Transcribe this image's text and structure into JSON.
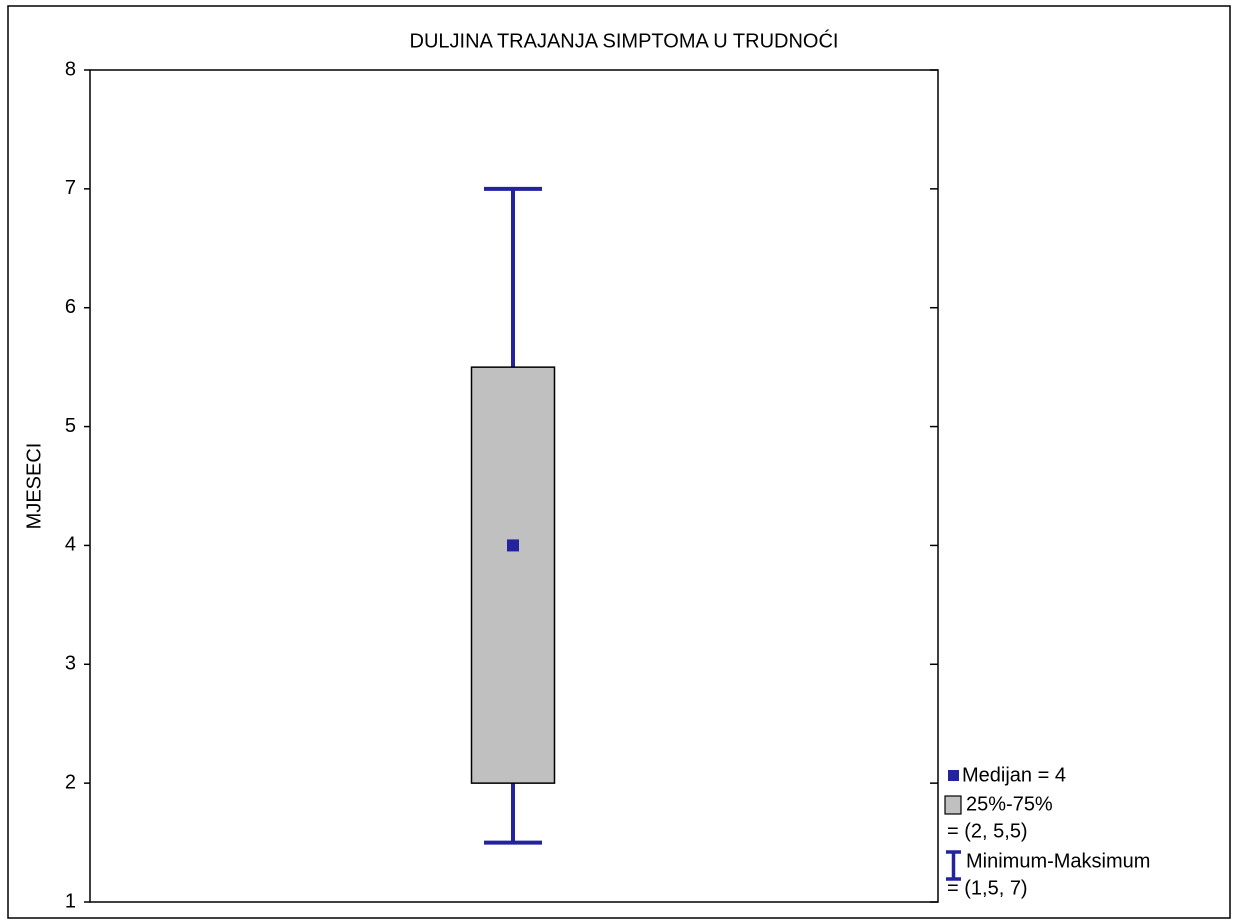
{
  "chart_data": {
    "type": "box",
    "title": "DULJINA TRAJANJA SIMPTOMA U TRUDNOĆI",
    "ylabel": "MJESECI",
    "ylim": [
      1,
      8
    ],
    "yticks": [
      1,
      2,
      3,
      4,
      5,
      6,
      7,
      8
    ],
    "box": {
      "median": 4,
      "q1": 2,
      "q3": 5.5,
      "min": 1.5,
      "max": 7
    },
    "color": "#2323a0",
    "box_color": "#c0c0c0",
    "legend": {
      "median": "Medijan = 4",
      "box": "25%-75%",
      "box_range": "= (2, 5,5)",
      "whisker": "Minimum-Maksimum",
      "whisker_range": "= (1,5, 7)"
    },
    "legend_position": "lower right"
  }
}
